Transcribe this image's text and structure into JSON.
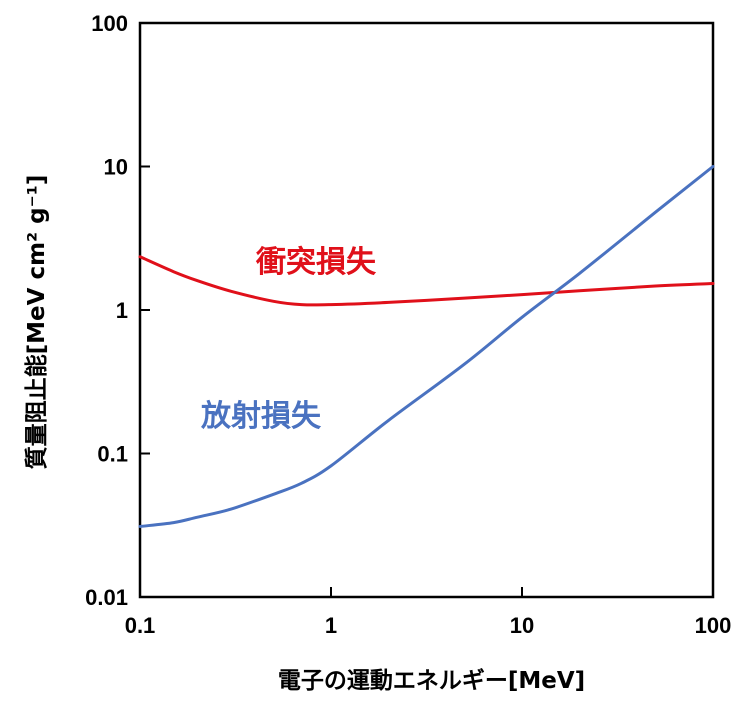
{
  "chart_data": {
    "type": "line",
    "xscale": "log",
    "yscale": "log",
    "xlim": [
      0.1,
      100
    ],
    "ylim": [
      0.01,
      100
    ],
    "xticks": [
      0.1,
      1,
      10,
      100
    ],
    "xtick_labels": [
      "0.1",
      "1",
      "10",
      "100"
    ],
    "yticks": [
      0.01,
      0.1,
      1,
      10,
      100
    ],
    "ytick_labels": [
      "0.01",
      "0.1",
      "1",
      "10",
      "100"
    ],
    "xlabel": "電子の運動エネルギー[MeV]",
    "ylabel": "質量阻止能[MeV cm² g⁻¹]",
    "grid": false,
    "series": [
      {
        "name": "衝突損失",
        "color": "#e0101a",
        "x": [
          0.1,
          0.15,
          0.2,
          0.3,
          0.5,
          0.7,
          1,
          2,
          5,
          10,
          20,
          50,
          100
        ],
        "y": [
          2.35,
          1.85,
          1.6,
          1.35,
          1.15,
          1.09,
          1.09,
          1.13,
          1.21,
          1.28,
          1.36,
          1.47,
          1.53
        ]
      },
      {
        "name": "放射損失",
        "color": "#4a72c0",
        "x": [
          0.1,
          0.15,
          0.2,
          0.3,
          0.5,
          0.7,
          1,
          2,
          5,
          10,
          20,
          50,
          100
        ],
        "y": [
          0.031,
          0.033,
          0.036,
          0.041,
          0.052,
          0.062,
          0.082,
          0.17,
          0.42,
          0.89,
          1.8,
          4.8,
          10
        ]
      }
    ]
  }
}
